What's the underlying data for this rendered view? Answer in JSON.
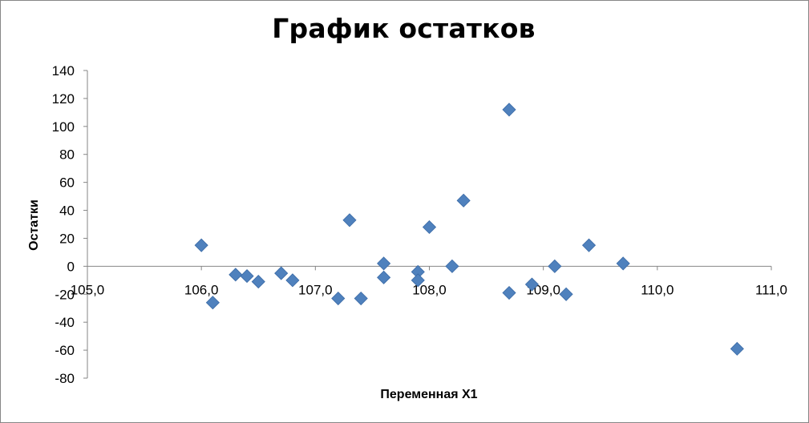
{
  "chart_data": {
    "type": "scatter",
    "title": "График остатков",
    "xlabel": "Переменная X1",
    "ylabel": "Остатки",
    "xlim": [
      105.0,
      111.0
    ],
    "ylim": [
      -80,
      140
    ],
    "x_ticks": [
      "105,0",
      "106,0",
      "107,0",
      "108,0",
      "109,0",
      "110,0",
      "111,0"
    ],
    "y_ticks": [
      "-80",
      "-60",
      "-40",
      "-20",
      "0",
      "20",
      "40",
      "60",
      "80",
      "100",
      "120",
      "140"
    ],
    "grid": false,
    "legend": "none",
    "marker": "diamond",
    "marker_color": "#4F81BD",
    "points": [
      {
        "x": 106.0,
        "y": 15
      },
      {
        "x": 106.1,
        "y": -26
      },
      {
        "x": 106.3,
        "y": -6
      },
      {
        "x": 106.4,
        "y": -7
      },
      {
        "x": 106.5,
        "y": -11
      },
      {
        "x": 106.7,
        "y": -5
      },
      {
        "x": 106.8,
        "y": -10
      },
      {
        "x": 107.2,
        "y": -23
      },
      {
        "x": 107.3,
        "y": 33
      },
      {
        "x": 107.4,
        "y": -23
      },
      {
        "x": 107.6,
        "y": 2
      },
      {
        "x": 107.6,
        "y": -8
      },
      {
        "x": 107.9,
        "y": -4
      },
      {
        "x": 107.9,
        "y": -10
      },
      {
        "x": 108.0,
        "y": 28
      },
      {
        "x": 108.2,
        "y": 0
      },
      {
        "x": 108.3,
        "y": 47
      },
      {
        "x": 108.7,
        "y": 112
      },
      {
        "x": 108.7,
        "y": -19
      },
      {
        "x": 108.9,
        "y": -13
      },
      {
        "x": 109.1,
        "y": 0
      },
      {
        "x": 109.2,
        "y": -20
      },
      {
        "x": 109.4,
        "y": 15
      },
      {
        "x": 109.7,
        "y": 2
      },
      {
        "x": 110.7,
        "y": -59
      }
    ]
  }
}
